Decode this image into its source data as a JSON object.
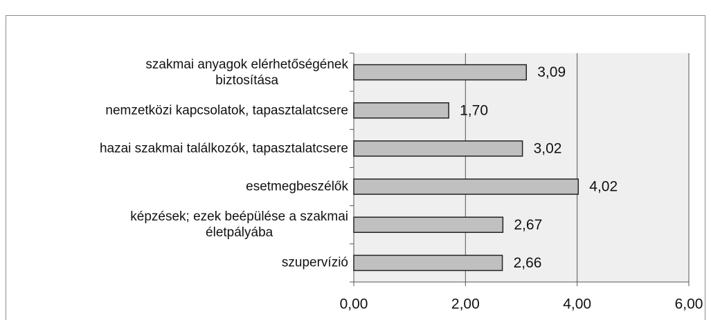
{
  "chart_data": {
    "type": "bar",
    "orientation": "horizontal",
    "categories": [
      "szakmai anyagok elérhetőségének\nbiztosítása",
      "nemzetközi kapcsolatok, tapasztalatcsere",
      "hazai szakmai találkozók, tapasztalatcsere",
      "esetmegbeszélők",
      "képzések; ezek beépülése a szakmai\néletpályába",
      "szupervízió"
    ],
    "values": [
      3.09,
      1.7,
      3.02,
      4.02,
      2.67,
      2.66
    ],
    "value_labels": [
      "3,09",
      "1,70",
      "3,02",
      "4,02",
      "2,67",
      "2,66"
    ],
    "color": "#c0c0c0",
    "xlim": [
      0,
      6
    ],
    "xticks": [
      {
        "value": 0,
        "label": "0,00"
      },
      {
        "value": 2,
        "label": "2,00"
      },
      {
        "value": 4,
        "label": "4,00"
      },
      {
        "value": 6,
        "label": "6,00"
      }
    ],
    "grid": true
  }
}
